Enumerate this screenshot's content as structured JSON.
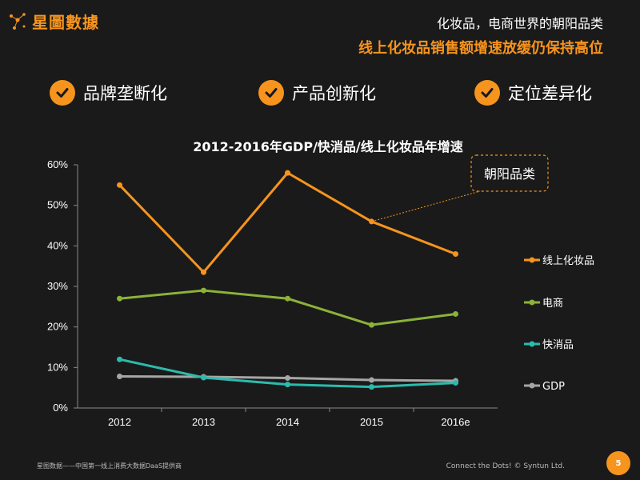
{
  "brand": {
    "name": "星圖數據"
  },
  "header": {
    "line1": "化妆品，电商世界的朝阳品类",
    "line2": "线上化妆品销售额增速放缓仍保持高位"
  },
  "features": [
    {
      "label": "品牌垄断化"
    },
    {
      "label": "产品创新化"
    },
    {
      "label": "定位差异化"
    }
  ],
  "chart_data": {
    "type": "line",
    "title": "2012-2016年GDP/快消品/线上化妆品年增速",
    "categories": [
      "2012",
      "2013",
      "2014",
      "2015",
      "2016e"
    ],
    "ylim": [
      0,
      60
    ],
    "yticks": [
      "0%",
      "10%",
      "20%",
      "30%",
      "40%",
      "50%",
      "60%"
    ],
    "grid": false,
    "legend_position": "right",
    "series": [
      {
        "name": "线上化妆品",
        "color": "#f7941d",
        "values": [
          55,
          33.5,
          58,
          46,
          38
        ]
      },
      {
        "name": "电商",
        "color": "#8cb23a",
        "values": [
          27,
          29,
          27,
          20.5,
          23.2
        ]
      },
      {
        "name": "快消品",
        "color": "#2bbbad",
        "values": [
          12,
          7.5,
          5.8,
          5.2,
          6.2
        ]
      },
      {
        "name": "GDP",
        "color": "#a6a6a6",
        "values": [
          7.8,
          7.7,
          7.4,
          6.9,
          6.7
        ]
      }
    ],
    "annotation": {
      "text": "朝阳品类"
    }
  },
  "footer": {
    "left": "星图数据——中国第一线上消费大数据DaaS提供商",
    "right": "Connect the Dots!  © Syntun Ltd.",
    "page": "5"
  }
}
